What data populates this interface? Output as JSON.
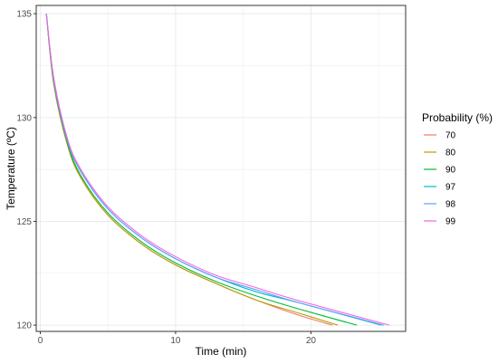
{
  "chart_data": {
    "type": "line",
    "xlabel": "Time (min)",
    "ylabel": "Temperature (ºC)",
    "xlim": [
      -0.3,
      27.0
    ],
    "ylim": [
      119.7,
      135.4
    ],
    "x_ticks": [
      0,
      10,
      20
    ],
    "x_tick_labels": [
      "0",
      "10",
      "20"
    ],
    "y_ticks": [
      120,
      125,
      130,
      135
    ],
    "y_tick_labels": [
      "120",
      "125",
      "130",
      "135"
    ],
    "grid": true,
    "legend": {
      "title": "Probability (%)",
      "position": "right"
    },
    "series": [
      {
        "name": "70",
        "color": "#F8766D",
        "x": [
          0.45,
          1.0,
          2.0,
          3.0,
          5.0,
          7.5,
          10.0,
          13.0,
          16.0,
          19.0,
          21.6
        ],
        "y": [
          135.0,
          131.6,
          128.7,
          127.1,
          125.3,
          123.9,
          122.9,
          122.0,
          121.2,
          120.5,
          120.0
        ]
      },
      {
        "name": "80",
        "color": "#B79F00",
        "x": [
          0.45,
          1.0,
          2.0,
          3.0,
          5.0,
          7.5,
          10.0,
          13.0,
          16.0,
          19.0,
          22.0
        ],
        "y": [
          135.0,
          131.6,
          128.7,
          127.1,
          125.3,
          123.9,
          122.9,
          122.0,
          121.2,
          120.6,
          120.0
        ]
      },
      {
        "name": "90",
        "color": "#00BA38",
        "x": [
          0.45,
          1.0,
          2.0,
          3.0,
          5.0,
          7.5,
          10.0,
          13.0,
          16.0,
          19.0,
          23.4
        ],
        "y": [
          135.0,
          131.7,
          128.8,
          127.2,
          125.4,
          124.0,
          123.0,
          122.1,
          121.4,
          120.8,
          120.0
        ]
      },
      {
        "name": "97",
        "color": "#00BFC4",
        "x": [
          0.45,
          1.0,
          2.0,
          3.0,
          5.0,
          7.5,
          10.0,
          13.0,
          16.0,
          19.0,
          25.2
        ],
        "y": [
          135.0,
          131.8,
          128.9,
          127.4,
          125.6,
          124.2,
          123.2,
          122.3,
          121.6,
          121.1,
          120.0
        ]
      },
      {
        "name": "98",
        "color": "#619CFF",
        "x": [
          0.45,
          1.0,
          2.0,
          3.0,
          5.0,
          7.5,
          10.0,
          13.0,
          16.0,
          19.0,
          25.4
        ],
        "y": [
          135.0,
          131.8,
          128.9,
          127.4,
          125.6,
          124.2,
          123.2,
          122.3,
          121.7,
          121.1,
          120.0
        ]
      },
      {
        "name": "99",
        "color": "#F564E3",
        "x": [
          0.45,
          1.0,
          2.0,
          3.0,
          5.0,
          7.5,
          10.0,
          13.0,
          16.0,
          19.0,
          25.8
        ],
        "y": [
          135.0,
          131.9,
          129.0,
          127.5,
          125.7,
          124.3,
          123.3,
          122.4,
          121.8,
          121.2,
          120.0
        ]
      }
    ]
  }
}
